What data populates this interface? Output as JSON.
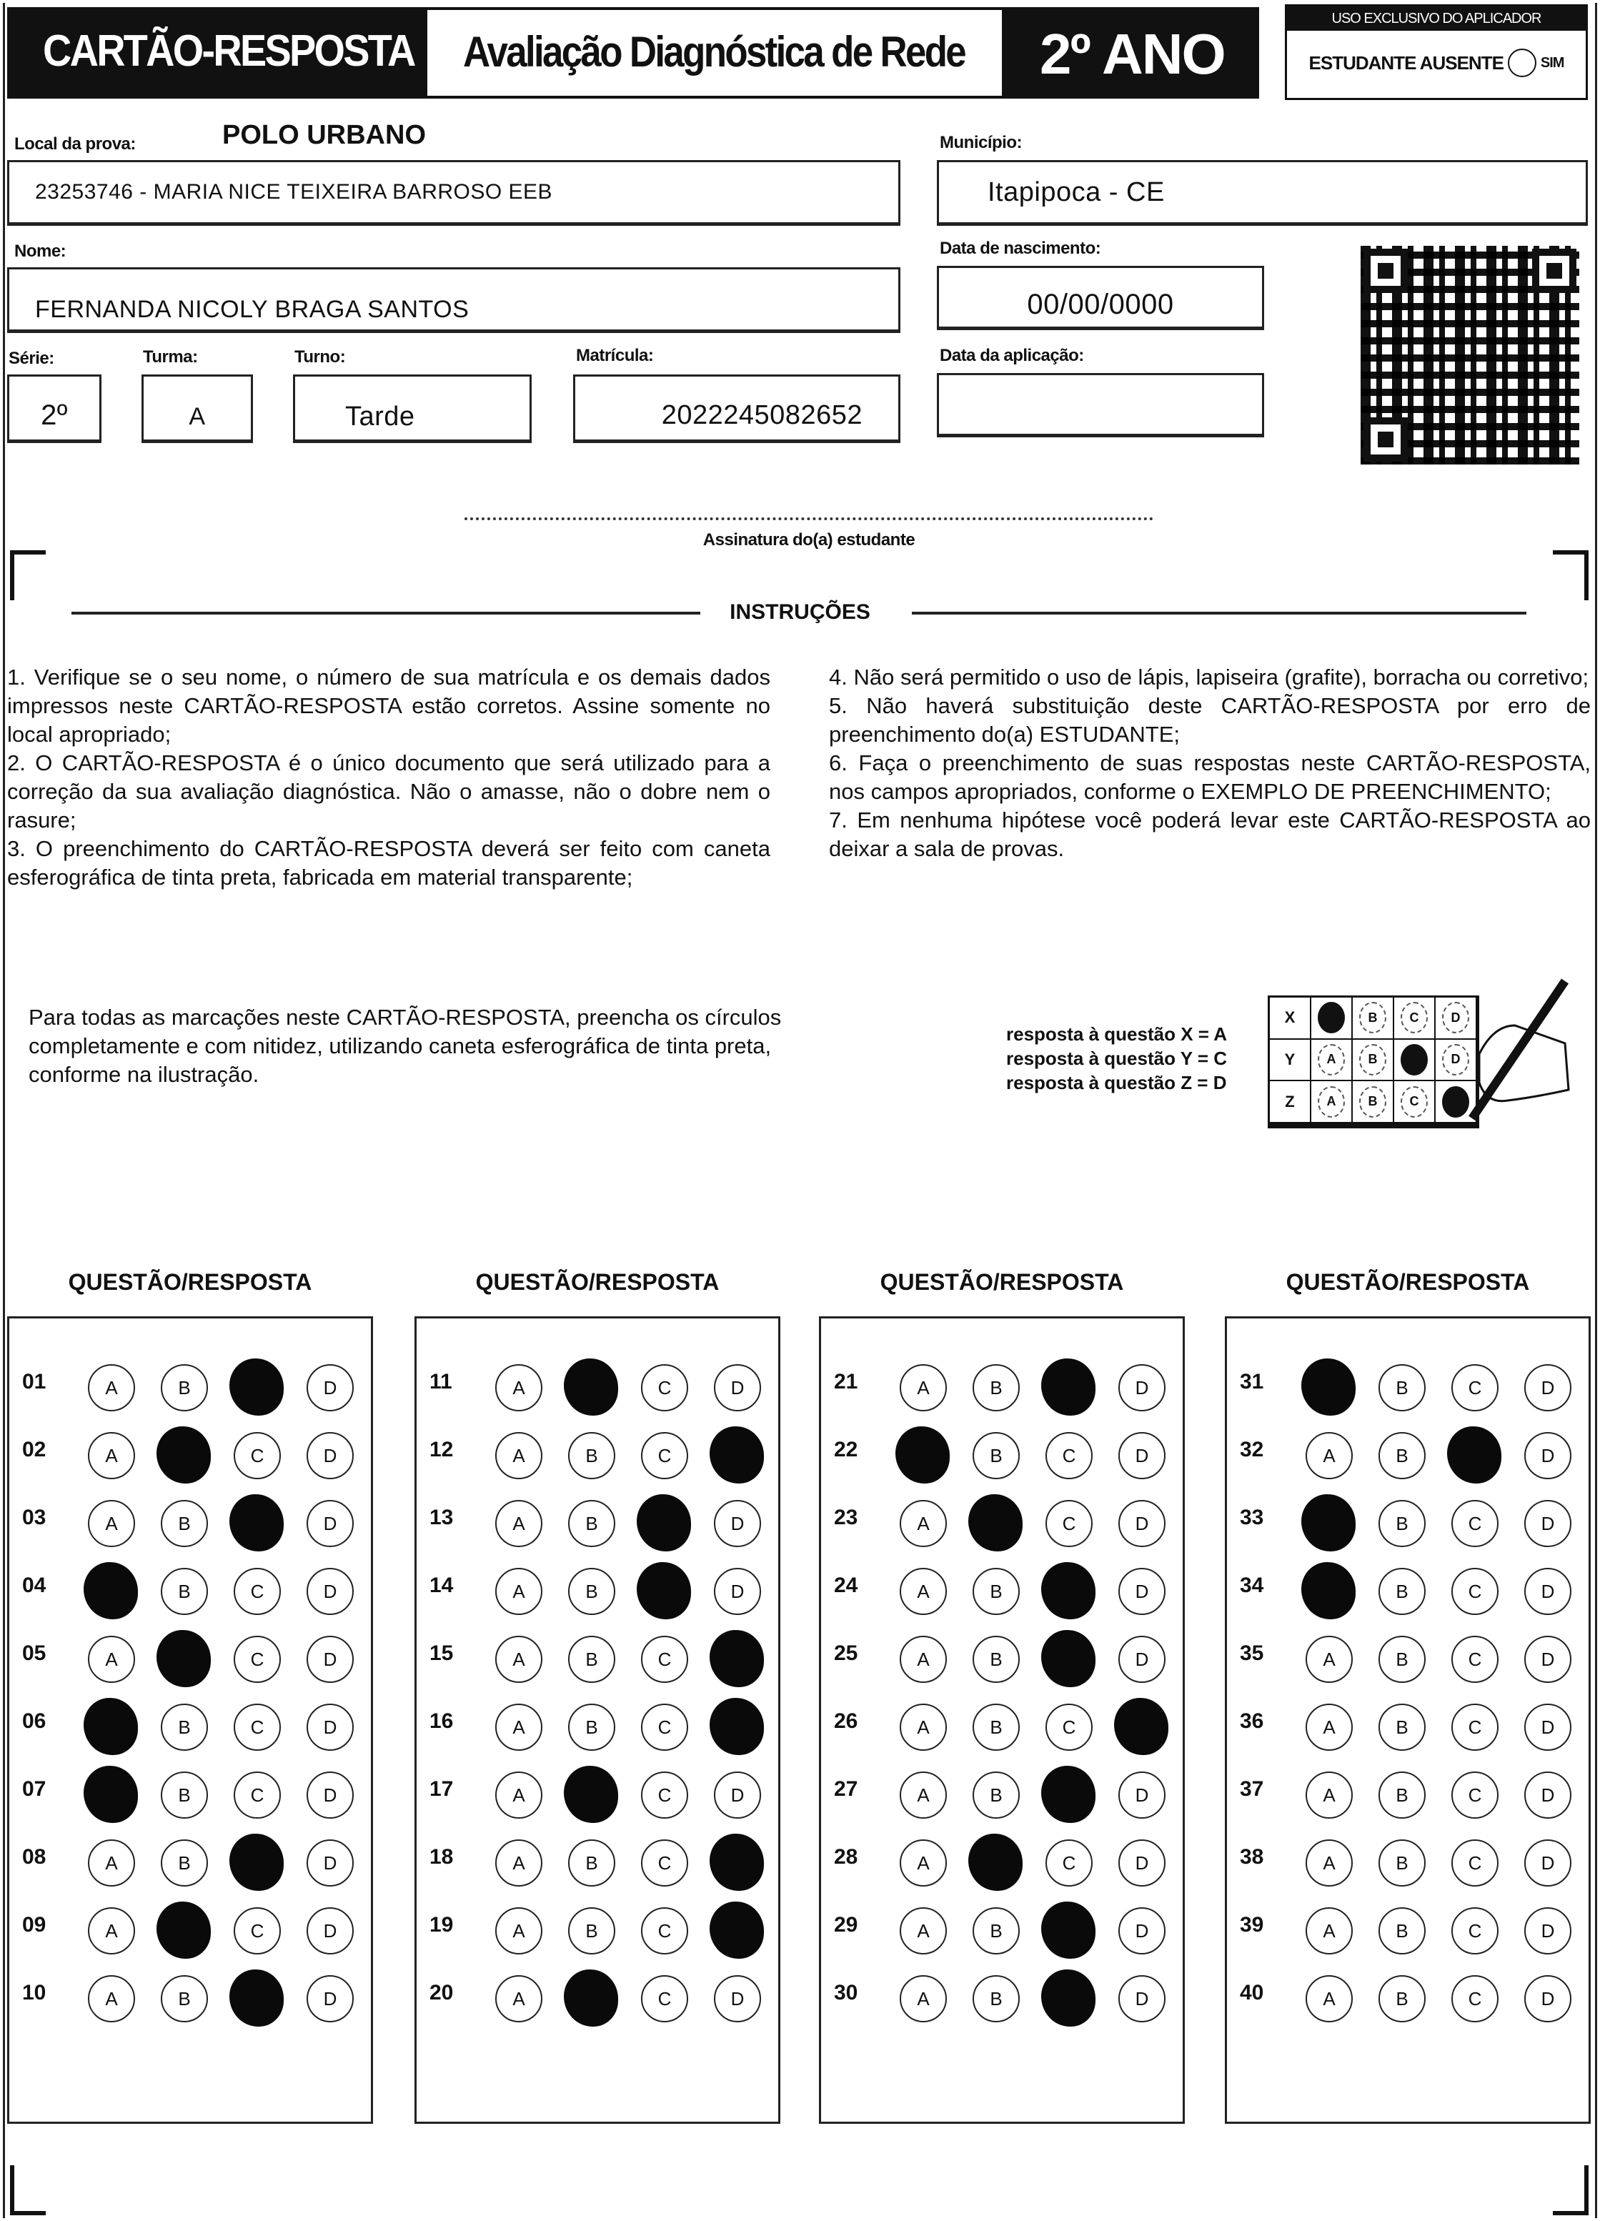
{
  "header": {
    "title": "CARTÃO-RESPOSTA",
    "subtitle": "Avaliação Diagnóstica de Rede",
    "grade": "2º ANO",
    "applicator_title": "USO EXCLUSIVO DO APLICADOR",
    "absent_label": "ESTUDANTE AUSENTE",
    "absent_option": "SIM"
  },
  "fields": {
    "local_label": "Local da prova:",
    "polo": "POLO URBANO",
    "school": "23253746 - MARIA NICE TEIXEIRA BARROSO EEB",
    "municipio_label": "Município:",
    "municipio": "Itapipoca - CE",
    "nome_label": "Nome:",
    "nome": "FERNANDA NICOLY BRAGA SANTOS",
    "nascimento_label": "Data de nascimento:",
    "nascimento": "00/00/0000",
    "serie_label": "Série:",
    "serie": "2º",
    "turma_label": "Turma:",
    "turma": "A",
    "turno_label": "Turno:",
    "turno": "Tarde",
    "matricula_label": "Matrícula:",
    "matricula": "2022245082652",
    "aplicacao_label": "Data da aplicação:",
    "aplicacao": ""
  },
  "signature_label": "Assinatura do(a) estudante",
  "instructions": {
    "title": "INSTRUÇÕES",
    "left": "1. Verifique se o seu nome, o número de sua matrícula e os demais dados impressos neste CARTÃO-RESPOSTA estão corretos. Assine somente no local apropriado;\n2. O CARTÃO-RESPOSTA é o único documento que será utilizado para a correção da sua avaliação diagnóstica. Não o amasse, não o dobre nem o rasure;\n3. O preenchimento do CARTÃO-RESPOSTA deverá ser feito com caneta esferográfica de tinta preta, fabricada em material transparente;",
    "right": "4. Não será permitido o uso de lápis, lapiseira (grafite), borracha ou corretivo;\n5. Não haverá substituição deste CARTÃO-RESPOSTA por erro de preenchimento do(a) ESTUDANTE;\n6. Faça o preenchimento de suas respostas neste CARTÃO-RESPOSTA, nos campos apropriados, conforme o EXEMPLO DE PREENCHIMENTO;\n7. Em nenhuma hipótese você poderá levar este CARTÃO-RESPOSTA ao deixar a sala de provas."
  },
  "fill_note": "Para todas as marcações neste CARTÃO-RESPOSTA, preencha os círculos completamente e com nitidez, utilizando caneta esferográfica de tinta preta, conforme na ilustração.",
  "example": {
    "lines": [
      "resposta à questão X = A",
      "resposta à questão Y = C",
      "resposta à questão Z = D"
    ],
    "rows": [
      {
        "label": "X",
        "answer": "A"
      },
      {
        "label": "Y",
        "answer": "C"
      },
      {
        "label": "Z",
        "answer": "D"
      }
    ]
  },
  "options": [
    "A",
    "B",
    "C",
    "D"
  ],
  "column_header": "QUESTÃO/RESPOSTA",
  "answers": [
    {
      "q": "01",
      "a": "C"
    },
    {
      "q": "02",
      "a": "B"
    },
    {
      "q": "03",
      "a": "C"
    },
    {
      "q": "04",
      "a": "A"
    },
    {
      "q": "05",
      "a": "B"
    },
    {
      "q": "06",
      "a": "A"
    },
    {
      "q": "07",
      "a": "A"
    },
    {
      "q": "08",
      "a": "C"
    },
    {
      "q": "09",
      "a": "B"
    },
    {
      "q": "10",
      "a": "C"
    },
    {
      "q": "11",
      "a": "B"
    },
    {
      "q": "12",
      "a": "D"
    },
    {
      "q": "13",
      "a": "C"
    },
    {
      "q": "14",
      "a": "C"
    },
    {
      "q": "15",
      "a": "D"
    },
    {
      "q": "16",
      "a": "D"
    },
    {
      "q": "17",
      "a": "B"
    },
    {
      "q": "18",
      "a": "D"
    },
    {
      "q": "19",
      "a": "D"
    },
    {
      "q": "20",
      "a": "B"
    },
    {
      "q": "21",
      "a": "C"
    },
    {
      "q": "22",
      "a": "A"
    },
    {
      "q": "23",
      "a": "B"
    },
    {
      "q": "24",
      "a": "C"
    },
    {
      "q": "25",
      "a": "C"
    },
    {
      "q": "26",
      "a": "D"
    },
    {
      "q": "27",
      "a": "C"
    },
    {
      "q": "28",
      "a": "B"
    },
    {
      "q": "29",
      "a": "C"
    },
    {
      "q": "30",
      "a": "C"
    },
    {
      "q": "31",
      "a": "A"
    },
    {
      "q": "32",
      "a": "C"
    },
    {
      "q": "33",
      "a": "A"
    },
    {
      "q": "34",
      "a": "A"
    },
    {
      "q": "35",
      "a": ""
    },
    {
      "q": "36",
      "a": ""
    },
    {
      "q": "37",
      "a": ""
    },
    {
      "q": "38",
      "a": ""
    },
    {
      "q": "39",
      "a": ""
    },
    {
      "q": "40",
      "a": ""
    }
  ]
}
